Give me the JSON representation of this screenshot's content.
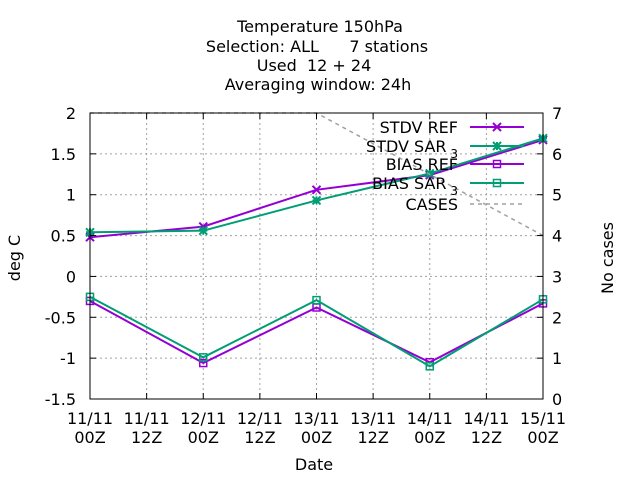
{
  "chart_data": {
    "type": "line",
    "title_lines": [
      "Temperature 150hPa",
      "Selection: ALL      7 stations",
      "Used  12 + 24",
      "Averaging window: 24h"
    ],
    "xlabel": "Date",
    "ylabel": "deg C",
    "y2label": "No cases",
    "x_ticks": [
      {
        "line1": "11/11",
        "line2": "00Z"
      },
      {
        "line1": "11/11",
        "line2": "12Z"
      },
      {
        "line1": "12/11",
        "line2": "00Z"
      },
      {
        "line1": "12/11",
        "line2": "12Z"
      },
      {
        "line1": "13/11",
        "line2": "00Z"
      },
      {
        "line1": "13/11",
        "line2": "12Z"
      },
      {
        "line1": "14/11",
        "line2": "00Z"
      },
      {
        "line1": "14/11",
        "line2": "12Z"
      },
      {
        "line1": "15/11",
        "line2": "00Z"
      }
    ],
    "xlim": [
      0,
      96
    ],
    "ylim": [
      -1.5,
      2
    ],
    "y_ticks": [
      "-1.5",
      "-1",
      "-0.5",
      "0",
      "0.5",
      "1",
      "1.5",
      "2"
    ],
    "y2lim": [
      0,
      7
    ],
    "y2_ticks": [
      "0",
      "1",
      "2",
      "3",
      "4",
      "5",
      "6",
      "7"
    ],
    "grid": true,
    "legend_position": "top-right",
    "series": [
      {
        "name": "STDV REF",
        "axis": "y1",
        "marker": "cross",
        "color": "#9400d3",
        "dashed": false,
        "x": [
          0,
          24,
          48,
          72,
          96
        ],
        "values": [
          0.48,
          0.61,
          1.06,
          1.24,
          1.67
        ]
      },
      {
        "name": "STDV SAR",
        "name_sub": "3",
        "axis": "y1",
        "marker": "star",
        "color": "#009e73",
        "dashed": false,
        "x": [
          0,
          24,
          48,
          72,
          96
        ],
        "values": [
          0.54,
          0.56,
          0.93,
          1.26,
          1.69
        ]
      },
      {
        "name": "BIAS REF",
        "axis": "y1",
        "marker": "square",
        "color": "#9400d3",
        "dashed": false,
        "x": [
          0,
          24,
          48,
          72,
          96
        ],
        "values": [
          -0.3,
          -1.06,
          -0.38,
          -1.05,
          -0.33
        ]
      },
      {
        "name": "BIAS SAR",
        "name_sub": "3",
        "axis": "y1",
        "marker": "square",
        "color": "#009e73",
        "dashed": false,
        "x": [
          0,
          24,
          48,
          72,
          96
        ],
        "values": [
          -0.25,
          -0.99,
          -0.29,
          -1.1,
          -0.28
        ]
      },
      {
        "name": "CASES",
        "axis": "y2",
        "marker": "none",
        "color": "#a0a0a0",
        "dashed": true,
        "x": [
          0,
          48,
          96
        ],
        "values": [
          7,
          7,
          4
        ]
      }
    ]
  }
}
